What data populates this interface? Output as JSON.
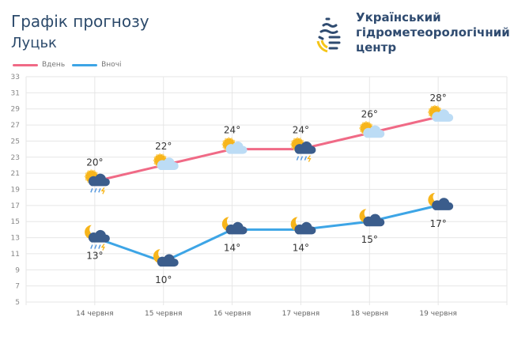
{
  "header": {
    "title": "Графік прогнозу",
    "city": "Луцьк",
    "org_lines": [
      "Український",
      "гідрометеорологічний",
      "центр"
    ]
  },
  "colors": {
    "day": "#f06a86",
    "night": "#3da5e6",
    "text": "#2c4a6b"
  },
  "chart_data": {
    "type": "line",
    "categories": [
      "14 червня",
      "15 червня",
      "16 червня",
      "17 червня",
      "18 червня",
      "19 червня"
    ],
    "series": [
      {
        "name": "Вдень",
        "values": [
          20,
          22,
          24,
          24,
          26,
          28
        ],
        "labels": [
          "20°",
          "22°",
          "24°",
          "24°",
          "26°",
          "28°"
        ],
        "icons": [
          "sun-storm-rain",
          "sun-cloud",
          "sun-cloud",
          "sun-storm-rain",
          "sun-cloud",
          "sun-cloud"
        ]
      },
      {
        "name": "Вночі",
        "values": [
          13,
          10,
          14,
          14,
          15,
          17
        ],
        "labels": [
          "13°",
          "10°",
          "14°",
          "14°",
          "15°",
          "17°"
        ],
        "icons": [
          "moon-storm-rain",
          "moon-cloud",
          "moon-cloud",
          "moon-cloud",
          "moon-cloud",
          "moon-cloud"
        ]
      }
    ],
    "yticks": [
      5,
      7,
      9,
      11,
      13,
      15,
      17,
      19,
      21,
      23,
      25,
      27,
      29,
      31,
      33
    ],
    "ylim": [
      5,
      33
    ],
    "grid": true,
    "legend": "top-left"
  }
}
